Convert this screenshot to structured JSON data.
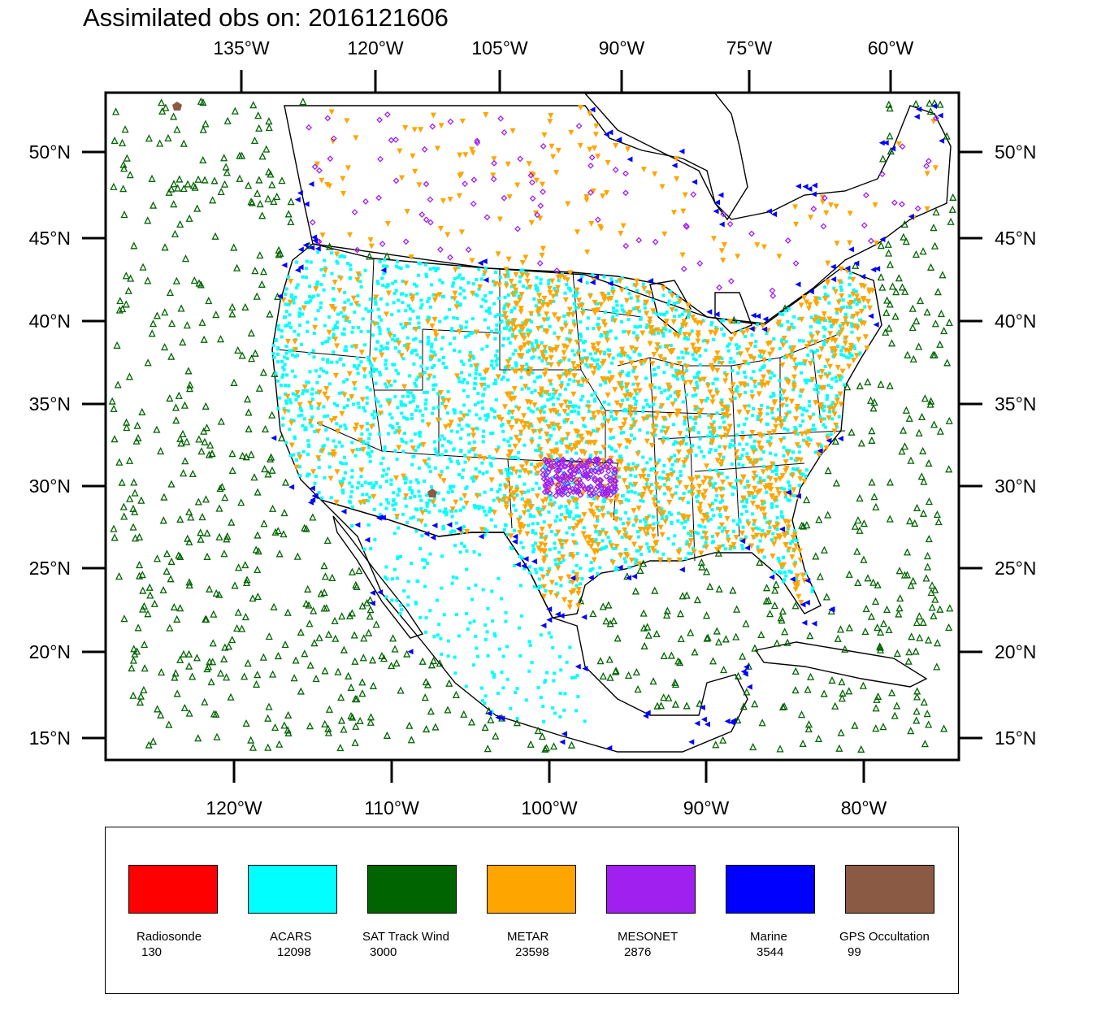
{
  "title": "Assimilated obs on: 2016121606",
  "top_axis_labels": [
    "135°W",
    "120°W",
    "105°W",
    "90°W",
    "75°W",
    "60°W"
  ],
  "bottom_axis_labels": [
    "120°W",
    "110°W",
    "100°W",
    "90°W",
    "80°W"
  ],
  "left_axis_labels": [
    "50°N",
    "45°N",
    "40°N",
    "35°N",
    "30°N",
    "25°N",
    "20°N",
    "15°N"
  ],
  "right_axis_labels": [
    "50°N",
    "45°N",
    "40°N",
    "35°N",
    "30°N",
    "25°N",
    "20°N",
    "15°N"
  ],
  "legend": [
    {
      "name": "Radiosonde",
      "count": "130",
      "color": "#ff0000"
    },
    {
      "name": "ACARS",
      "count": "12098",
      "color": "#00ffff"
    },
    {
      "name": "SAT Track Wind",
      "count": "3000",
      "color": "#006400"
    },
    {
      "name": "METAR",
      "count": "23598",
      "color": "#ffa500"
    },
    {
      "name": "MESONET",
      "count": "2876",
      "color": "#a020f0"
    },
    {
      "name": "Marine",
      "count": "3544",
      "color": "#0000ff"
    },
    {
      "name": "GPS Occultation",
      "count": "99",
      "color": "#8b5a44"
    }
  ]
}
